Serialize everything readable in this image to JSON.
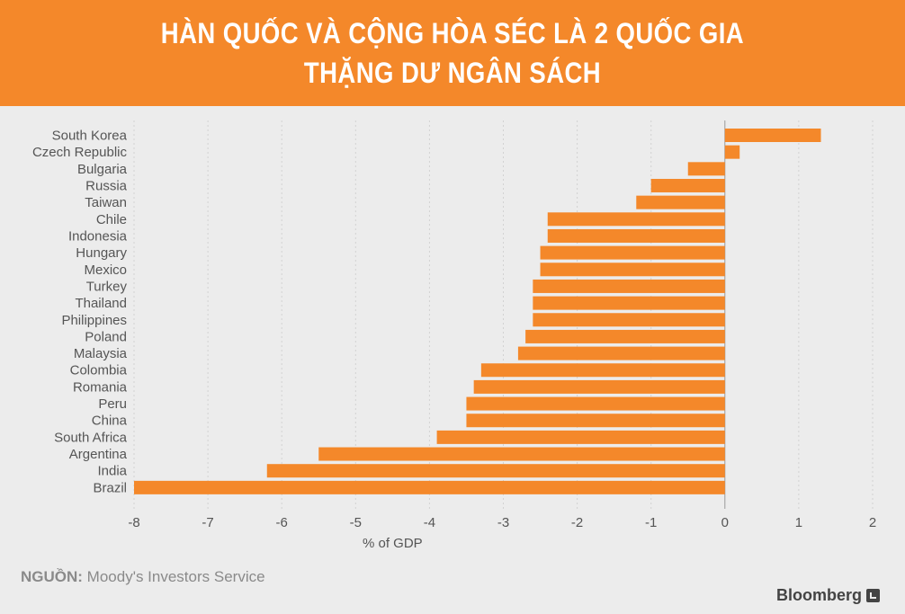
{
  "header": {
    "title_line1": "HÀN QUỐC VÀ CỘNG HÒA SÉC LÀ 2 QUỐC GIA",
    "title_line2": "THẶNG DƯ NGÂN SÁCH",
    "bg_color": "#f4882a"
  },
  "source": {
    "label": "NGUỒN:",
    "text": " Moody's Investors Service"
  },
  "brand": {
    "name": "Bloomberg"
  },
  "chart_data": {
    "type": "bar",
    "orientation": "horizontal",
    "title": "HÀN QUỐC VÀ CỘNG HÒA SÉC LÀ 2 QUỐC GIA THẶNG DƯ NGÂN SÁCH",
    "xlabel": "% of GDP",
    "ylabel": "",
    "xlim": [
      -8,
      2
    ],
    "xticks": [
      -8,
      -7,
      -6,
      -5,
      -4,
      -3,
      -2,
      -1,
      0,
      1,
      2
    ],
    "grid": true,
    "bar_color": "#f4882a",
    "categories": [
      "South Korea",
      "Czech Republic",
      "Bulgaria",
      "Russia",
      "Taiwan",
      "Chile",
      "Indonesia",
      "Hungary",
      "Mexico",
      "Turkey",
      "Thailand",
      "Philippines",
      "Poland",
      "Malaysia",
      "Colombia",
      "Romania",
      "Peru",
      "China",
      "South Africa",
      "Argentina",
      "India",
      "Brazil"
    ],
    "values": [
      1.3,
      0.2,
      -0.5,
      -1.0,
      -1.2,
      -2.4,
      -2.4,
      -2.5,
      -2.5,
      -2.6,
      -2.6,
      -2.6,
      -2.7,
      -2.8,
      -3.3,
      -3.4,
      -3.5,
      -3.5,
      -3.9,
      -5.5,
      -6.2,
      -8.0
    ]
  }
}
